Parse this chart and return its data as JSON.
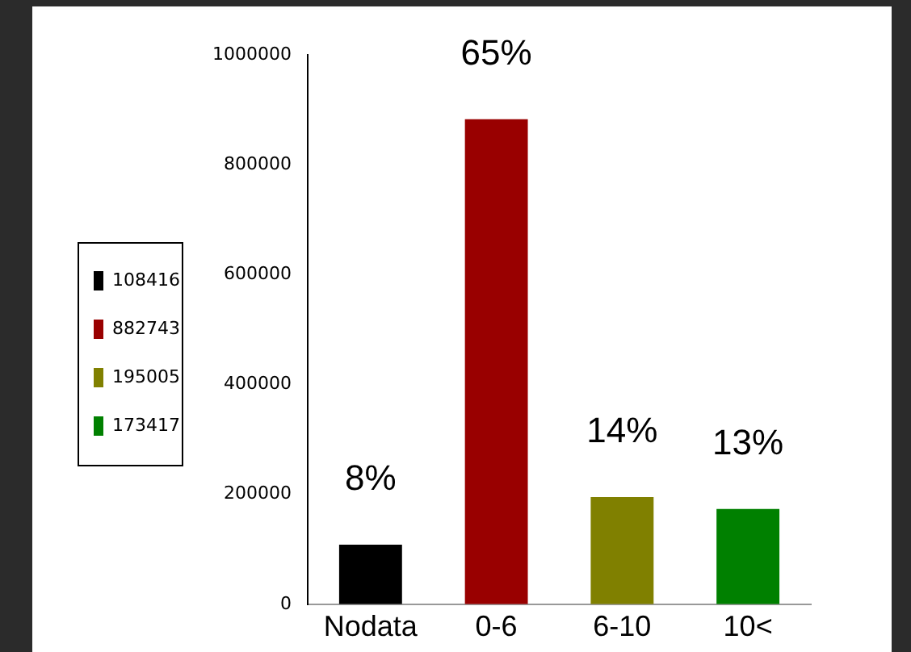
{
  "chart_data": {
    "type": "bar",
    "categories": [
      "Nodata",
      "0-6",
      "6-10",
      "10<"
    ],
    "series": [
      {
        "name": "108416",
        "color": "#000000",
        "values": [
          108416,
          null,
          null,
          null
        ]
      },
      {
        "name": "882743",
        "color": "#990000",
        "values": [
          null,
          882743,
          null,
          null
        ]
      },
      {
        "name": "195005",
        "color": "#808000",
        "values": [
          null,
          null,
          195005,
          null
        ]
      },
      {
        "name": "173417",
        "color": "#008000",
        "values": [
          null,
          null,
          null,
          173417
        ]
      }
    ],
    "annotations": [
      "8%",
      "65%",
      "14%",
      "13%"
    ],
    "stacked": true,
    "ylim": [
      0,
      1000000
    ],
    "yticks": [
      0,
      200000,
      400000,
      600000,
      800000,
      1000000
    ],
    "grid": false,
    "legend": "left"
  }
}
